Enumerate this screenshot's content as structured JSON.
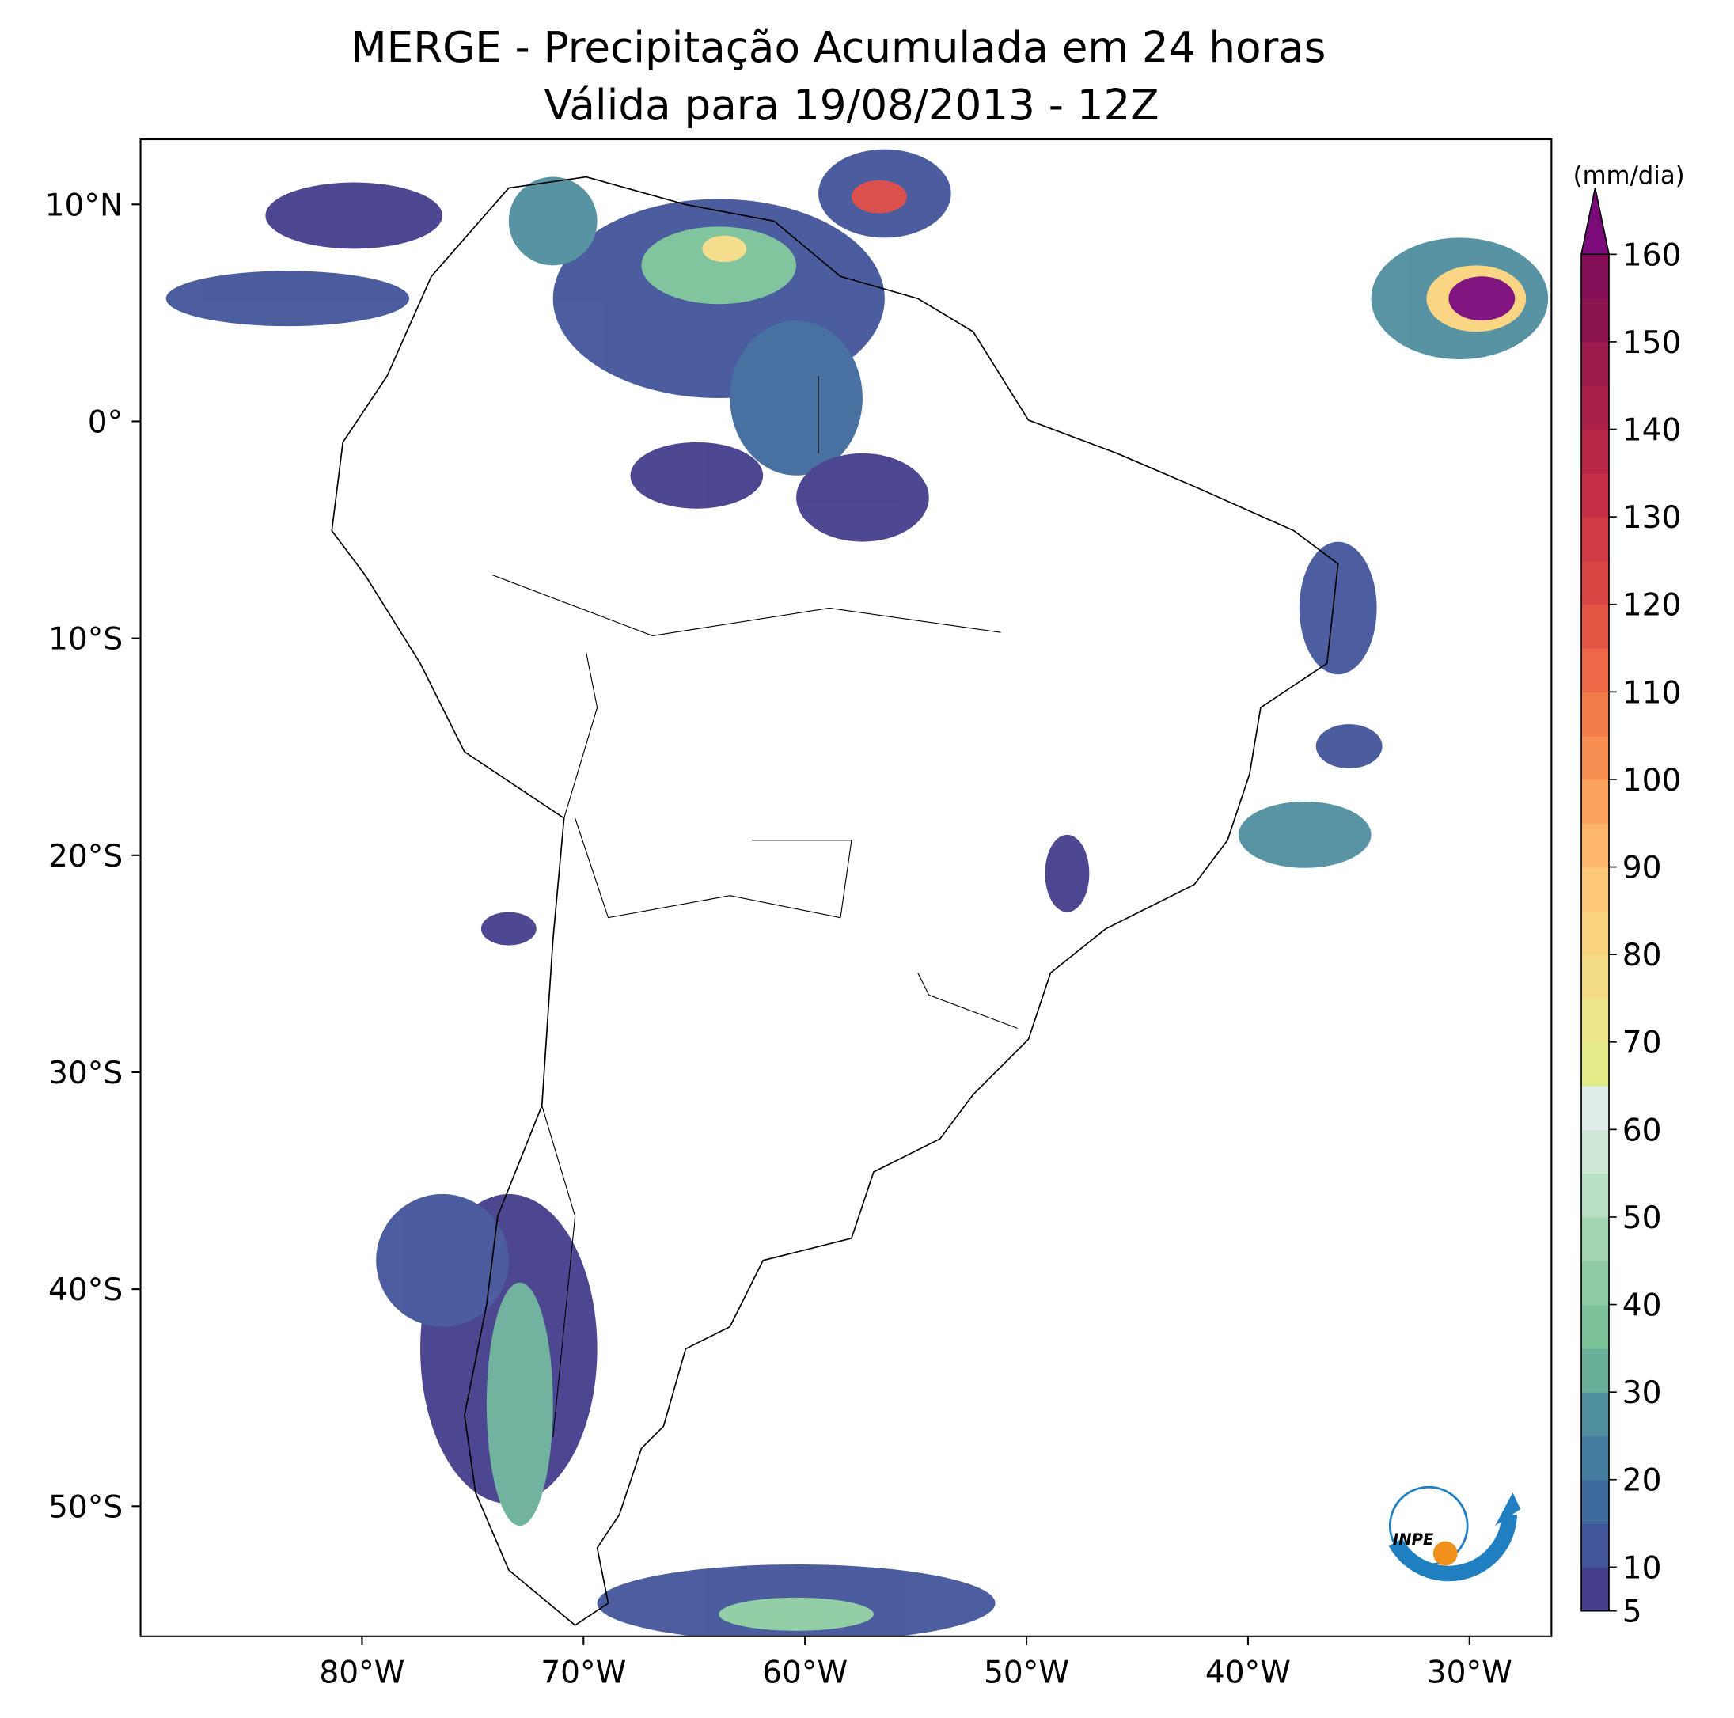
{
  "chart_data": {
    "type": "map",
    "title": [
      "MERGE - Precipitação Acumulada em 24 horas",
      "Válida para 19/08/2013 - 12Z"
    ],
    "xlim": [
      -90,
      -26.3
    ],
    "ylim": [
      -56,
      13
    ],
    "xticks": [
      {
        "value": -80,
        "label": "80°W"
      },
      {
        "value": -70,
        "label": "70°W"
      },
      {
        "value": -60,
        "label": "60°W"
      },
      {
        "value": -50,
        "label": "50°W"
      },
      {
        "value": -40,
        "label": "40°W"
      },
      {
        "value": -30,
        "label": "30°W"
      }
    ],
    "yticks": [
      {
        "value": 10,
        "label": "10°N"
      },
      {
        "value": 0,
        "label": "0°"
      },
      {
        "value": -10,
        "label": "10°S"
      },
      {
        "value": -20,
        "label": "20°S"
      },
      {
        "value": -30,
        "label": "30°S"
      },
      {
        "value": -40,
        "label": "40°S"
      },
      {
        "value": -50,
        "label": "50°S"
      }
    ],
    "colorbar": {
      "label": "(mm/dia)",
      "lim": [
        5,
        160
      ],
      "ticks": [
        5,
        10,
        20,
        30,
        40,
        50,
        60,
        70,
        80,
        90,
        100,
        110,
        120,
        130,
        140,
        150,
        160
      ],
      "colors": [
        "#443e8d",
        "#42559a",
        "#3f6a9e",
        "#447da0",
        "#4f8e9f",
        "#6aaf9a",
        "#7bc29a",
        "#8fcca3",
        "#a3d5b0",
        "#b8dfc3",
        "#cde7d5",
        "#deecea",
        "#e4ec8a",
        "#eee48a",
        "#f4dc86",
        "#f9d37e",
        "#fcc776",
        "#fdb66a",
        "#fba35d",
        "#f78f52",
        "#f27b4a",
        "#ec6846",
        "#e35644",
        "#d94744",
        "#cf3a44",
        "#c42f45",
        "#b82747",
        "#a9204a",
        "#9c1a4c",
        "#8c1550",
        "#820e57"
      ],
      "extend_color": "#7b0a7a"
    },
    "logo": "INPE"
  }
}
